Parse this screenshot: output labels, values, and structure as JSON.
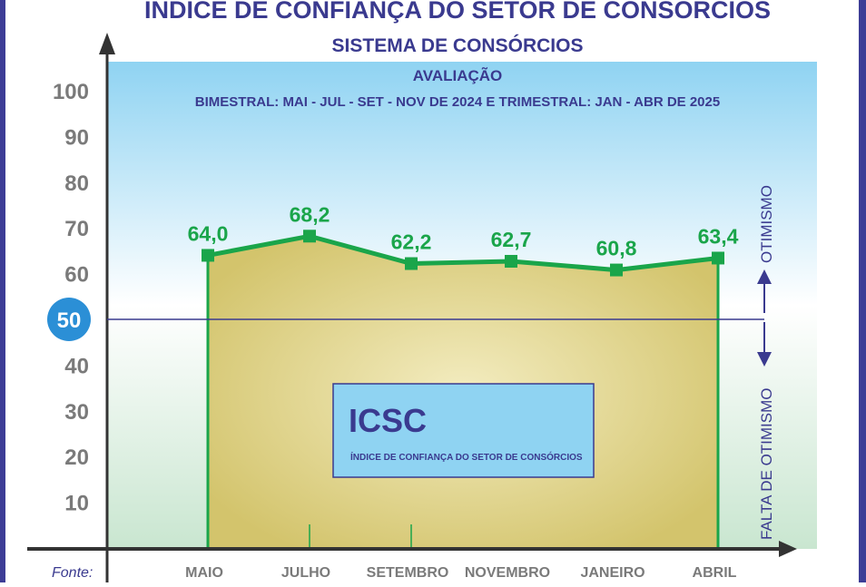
{
  "chart_data": {
    "type": "area",
    "title": "ÍNDICE DE CONFIANÇA DO SETOR DE CONSÓRCIOS",
    "subtitle": "SISTEMA DE CONSÓRCIOS",
    "evaluation_title": "AVALIAÇÃO",
    "evaluation_period": "BIMESTRAL: MAI - JUL - SET - NOV DE 2024 E TRIMESTRAL: JAN - ABR DE 2025",
    "categories": [
      "MAIO",
      "JULHO",
      "SETEMBRO",
      "NOVEMBRO",
      "JANEIRO",
      "ABRIL"
    ],
    "values": [
      64.0,
      68.2,
      62.2,
      62.7,
      60.8,
      63.4
    ],
    "value_labels": [
      "64,0",
      "68,2",
      "62,2",
      "62,7",
      "60,8",
      "63,4"
    ],
    "yticks": [
      10,
      20,
      30,
      40,
      50,
      60,
      70,
      80,
      90,
      100
    ],
    "ylim": [
      0,
      100
    ],
    "reference_line": 50,
    "upper_label": "OTIMISMO",
    "lower_label": "FALTA DE OTIMISMO",
    "box_title": "ICSC",
    "box_subtitle": "ÍNDICE DE CONFIANÇA DO SETOR DE CONSÓRCIOS",
    "source_label": "Fonte:",
    "grid": false,
    "colors": {
      "line": "#1aa54a",
      "fill": "#d6c872",
      "text": "#3a3a8f",
      "frame": "#3d3d96",
      "axis_text": "#7a7a7a",
      "highlight": "#2b8fd6"
    }
  }
}
